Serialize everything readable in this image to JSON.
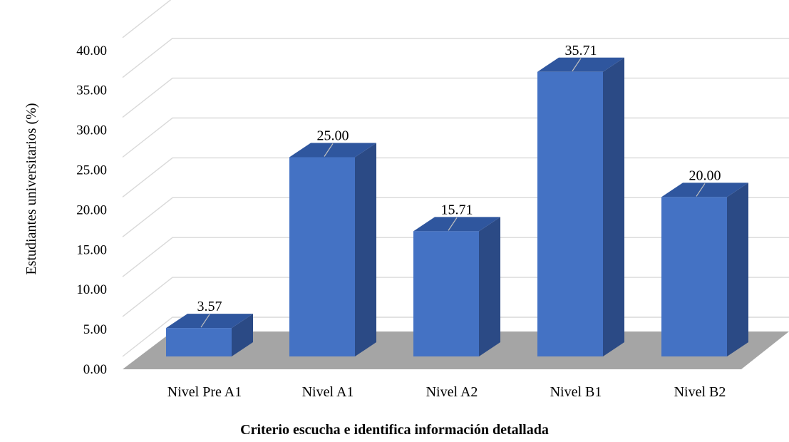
{
  "chart_data": {
    "type": "bar",
    "style": "3d-column",
    "categories": [
      "Nivel Pre A1",
      "Nivel A1",
      "Nivel A2",
      "Nivel B1",
      "Nivel B2"
    ],
    "values": [
      3.57,
      25.0,
      15.71,
      35.71,
      20.0
    ],
    "data_labels": [
      "3.57",
      "25.00",
      "15.71",
      "35.71",
      "20.00"
    ],
    "xlabel": "Criterio escucha e identifica información detallada",
    "ylabel": "Estudiantes universitarios (%)",
    "ylim": [
      0,
      40
    ],
    "yticks": [
      "0.00",
      "5.00",
      "10.00",
      "15.00",
      "20.00",
      "25.00",
      "30.00",
      "35.00",
      "40.00"
    ],
    "grid": true,
    "legend": "none",
    "colors": {
      "bar_front": "#4472c4",
      "bar_top": "#2f569e",
      "bar_side": "#2b4a85",
      "floor": "#a5a5a5",
      "grid": "#d9d9d9"
    }
  }
}
